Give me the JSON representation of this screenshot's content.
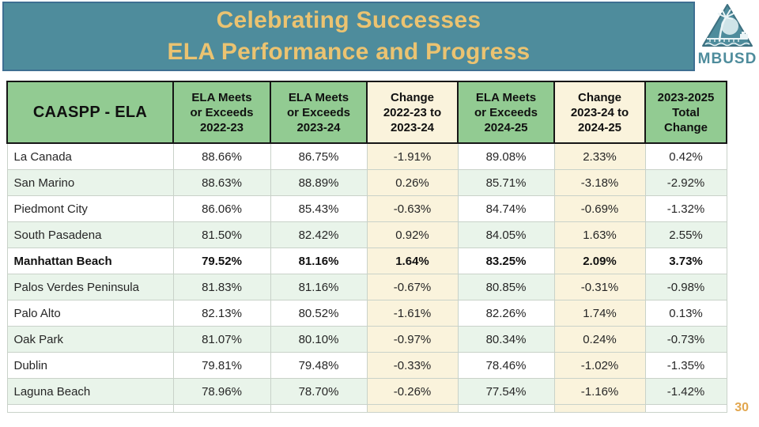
{
  "header_band": {
    "title_line1": "Celebrating Successes",
    "title_line2": "ELA Performance and Progress"
  },
  "logo": {
    "text": "MBUSD"
  },
  "page_number": "30",
  "table": {
    "columns": [
      {
        "label": "CAASPP - ELA",
        "style": "first"
      },
      {
        "label": "ELA Meets\nor Exceeds\n2022-23",
        "style": "green"
      },
      {
        "label": "ELA Meets\nor Exceeds\n2023-24",
        "style": "green"
      },
      {
        "label": "Change\n2022-23 to\n2023-24",
        "style": "cream"
      },
      {
        "label": "ELA Meets\nor Exceeds\n2024-25",
        "style": "green"
      },
      {
        "label": "Change\n2023-24 to\n2024-25",
        "style": "cream"
      },
      {
        "label": "2023-2025\nTotal\nChange",
        "style": "green"
      }
    ],
    "rows": [
      {
        "district": "La Canada",
        "bold": false,
        "values": [
          "88.66%",
          "86.75%",
          "-1.91%",
          "89.08%",
          "2.33%",
          "0.42%"
        ]
      },
      {
        "district": "San Marino",
        "bold": false,
        "values": [
          "88.63%",
          "88.89%",
          "0.26%",
          "85.71%",
          "-3.18%",
          "-2.92%"
        ]
      },
      {
        "district": "Piedmont City",
        "bold": false,
        "values": [
          "86.06%",
          "85.43%",
          "-0.63%",
          "84.74%",
          "-0.69%",
          "-1.32%"
        ]
      },
      {
        "district": "South Pasadena",
        "bold": false,
        "values": [
          "81.50%",
          "82.42%",
          "0.92%",
          "84.05%",
          "1.63%",
          "2.55%"
        ]
      },
      {
        "district": "Manhattan Beach",
        "bold": true,
        "values": [
          "79.52%",
          "81.16%",
          "1.64%",
          "83.25%",
          "2.09%",
          "3.73%"
        ]
      },
      {
        "district": "Palos Verdes Peninsula",
        "bold": false,
        "values": [
          "81.83%",
          "81.16%",
          "-0.67%",
          "80.85%",
          "-0.31%",
          "-0.98%"
        ]
      },
      {
        "district": "Palo Alto",
        "bold": false,
        "values": [
          "82.13%",
          "80.52%",
          "-1.61%",
          "82.26%",
          "1.74%",
          "0.13%"
        ]
      },
      {
        "district": "Oak Park",
        "bold": false,
        "values": [
          "81.07%",
          "80.10%",
          "-0.97%",
          "80.34%",
          "0.24%",
          "-0.73%"
        ]
      },
      {
        "district": "Dublin",
        "bold": false,
        "values": [
          "79.81%",
          "79.48%",
          "-0.33%",
          "78.46%",
          "-1.02%",
          "-1.35%"
        ]
      },
      {
        "district": "Laguna Beach",
        "bold": false,
        "values": [
          "78.96%",
          "78.70%",
          "-0.26%",
          "77.54%",
          "-1.16%",
          "-1.42%"
        ]
      }
    ]
  },
  "colors": {
    "band_teal": "#4E8C9C",
    "band_border_blue": "#3E6F92",
    "title_gold": "#EBC371",
    "header_green": "#92CB92",
    "change_cream": "#FAF3DC",
    "alt_row_green": "#E9F4EA",
    "header_border_black": "#161616",
    "page_number_orange": "#E2A74F"
  }
}
